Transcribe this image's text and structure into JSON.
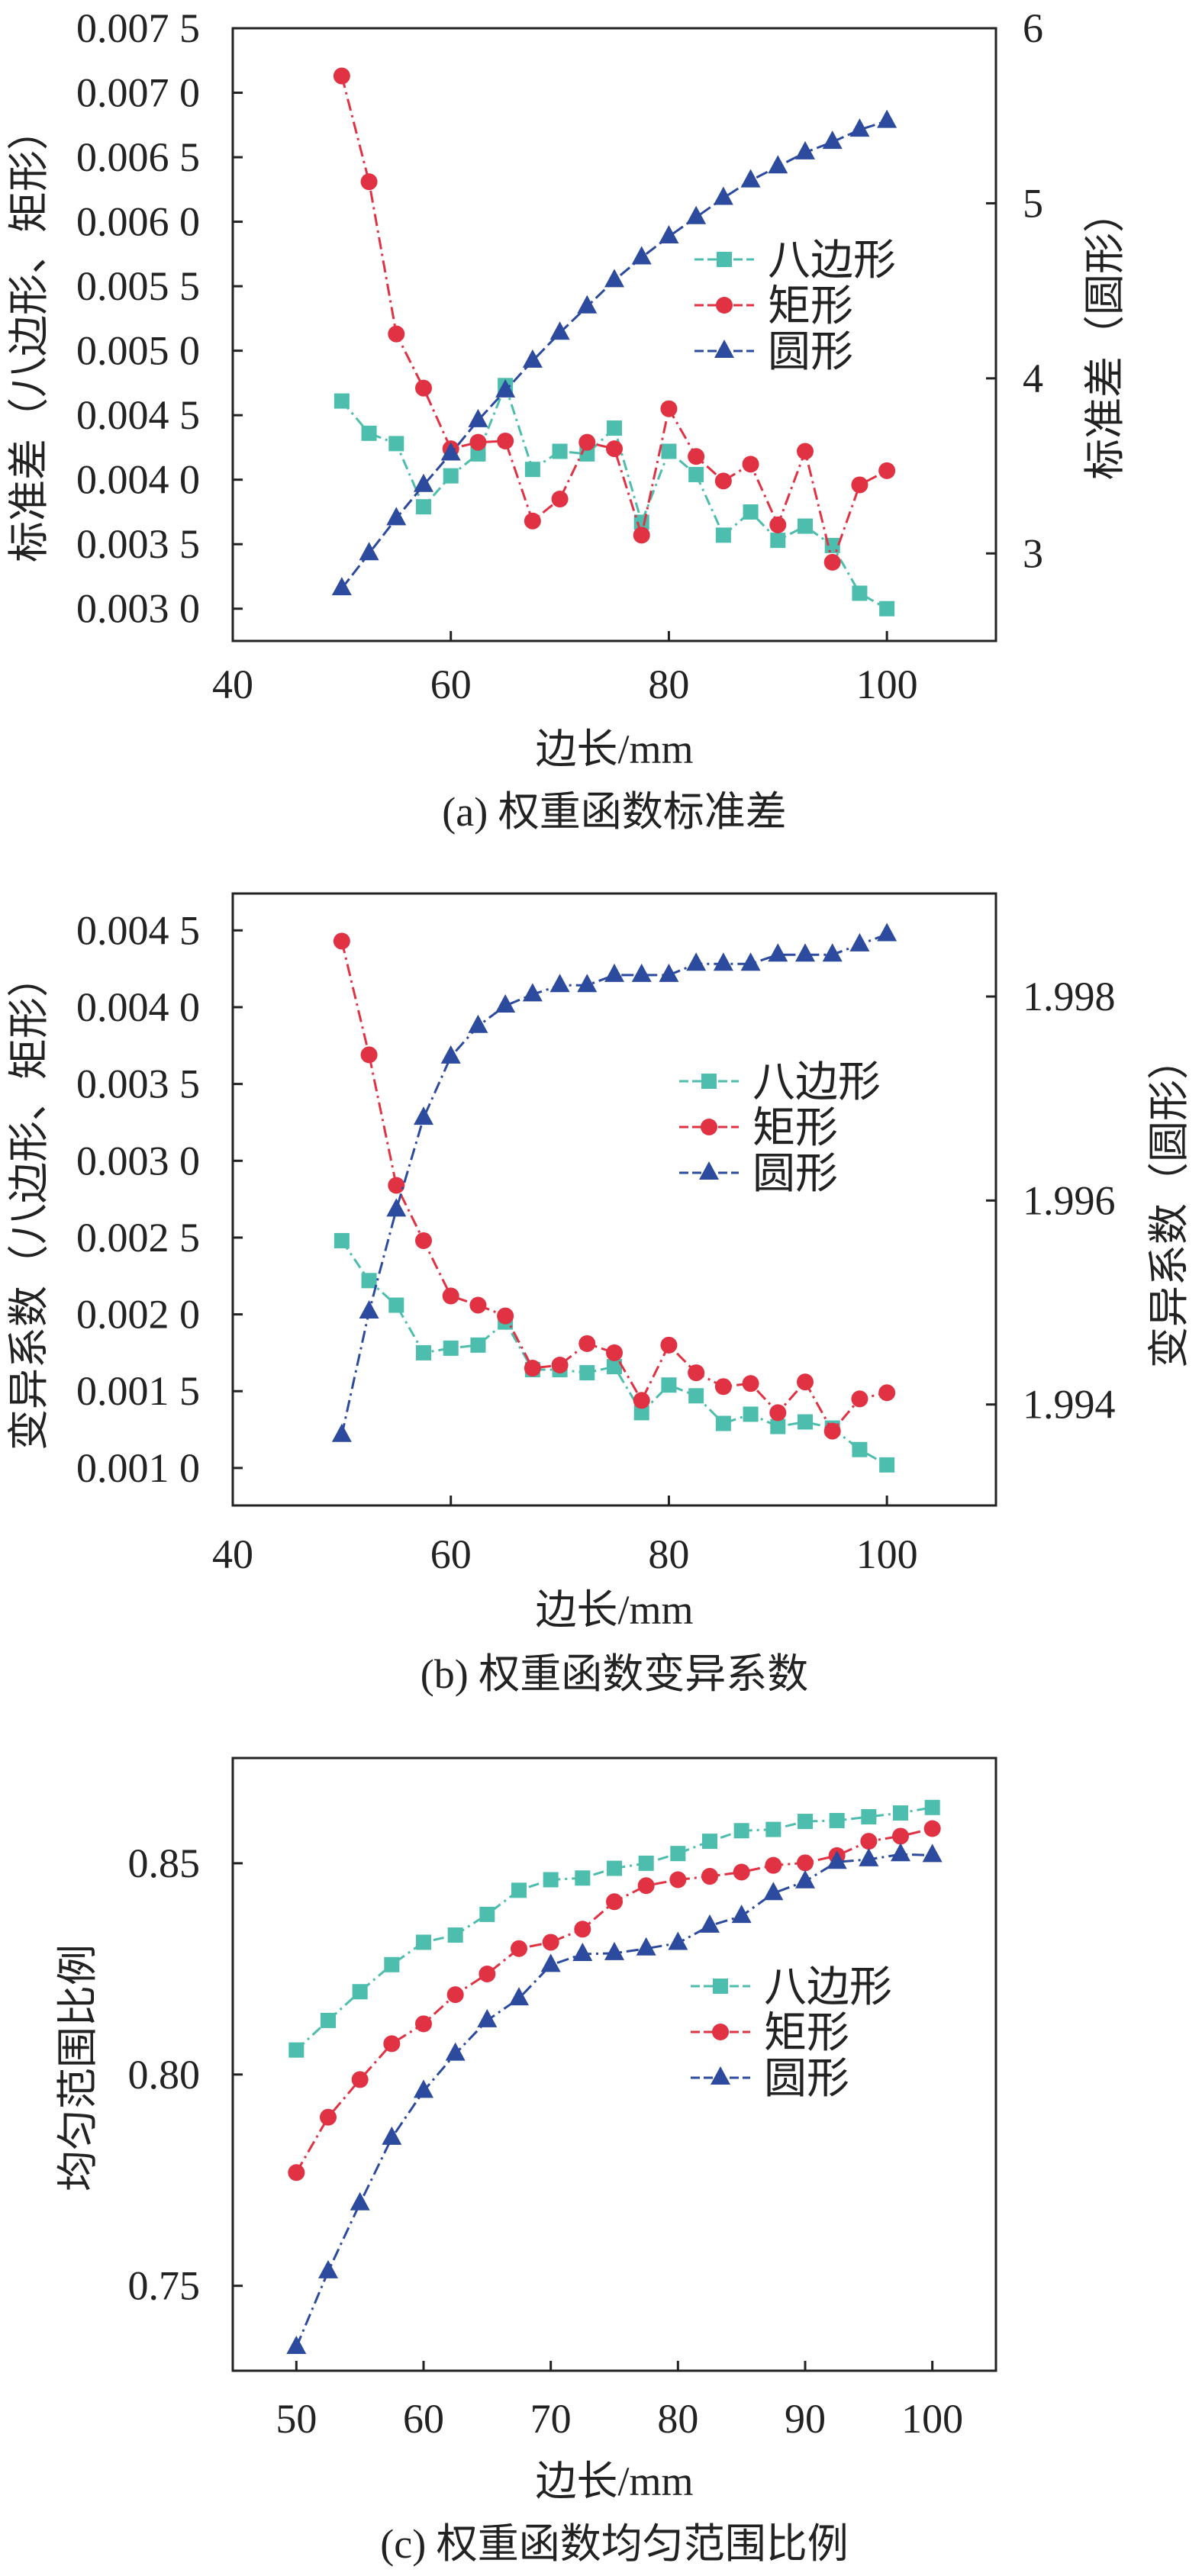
{
  "chart_data": [
    {
      "type": "line",
      "title": "(a) 权重函数标准差",
      "xlabel": "边长/mm",
      "ylabel": "标准差（八边形、矩形）",
      "ylabel_right": "标准差（圆形）",
      "xlim": [
        40,
        110
      ],
      "ylim": [
        0.00275,
        0.0075
      ],
      "ylim_right": [
        2.5,
        6
      ],
      "xticks": [
        {
          "v": 40,
          "label": "40"
        },
        {
          "v": 60,
          "label": "60"
        },
        {
          "v": 80,
          "label": "80"
        },
        {
          "v": 100,
          "label": "100"
        }
      ],
      "yticks": [
        {
          "v": 0.0075,
          "label": "0.007 5"
        },
        {
          "v": 0.007,
          "label": "0.007 0"
        },
        {
          "v": 0.0065,
          "label": "0.006 5"
        },
        {
          "v": 0.006,
          "label": "0.006 0"
        },
        {
          "v": 0.0055,
          "label": "0.005 5"
        },
        {
          "v": 0.005,
          "label": "0.005 0"
        },
        {
          "v": 0.0045,
          "label": "0.004 5"
        },
        {
          "v": 0.004,
          "label": "0.004 0"
        },
        {
          "v": 0.0035,
          "label": "0.003 5"
        },
        {
          "v": 0.003,
          "label": "0.003 0"
        }
      ],
      "yticks_right": [
        {
          "v": 6,
          "label": "6"
        },
        {
          "v": 5,
          "label": "5"
        },
        {
          "v": 4,
          "label": "4"
        },
        {
          "v": 3,
          "label": "3"
        }
      ],
      "legend": "center-right",
      "grid": false,
      "x": [
        50,
        52.5,
        55,
        57.5,
        60,
        62.5,
        65,
        67.5,
        70,
        72.5,
        75,
        77.5,
        80,
        82.5,
        85,
        87.5,
        90,
        92.5,
        95,
        97.5,
        100
      ],
      "series": [
        {
          "name": "八边形",
          "axis": "left",
          "marker": "square",
          "color": "#4dbdad",
          "dash": "14 6 3 6",
          "values": [
            0.00461,
            0.00436,
            0.00428,
            0.00379,
            0.00403,
            0.0042,
            0.00473,
            0.00408,
            0.00422,
            0.0042,
            0.0044,
            0.00367,
            0.00422,
            0.00404,
            0.00357,
            0.00375,
            0.00353,
            0.00364,
            0.00349,
            0.00312,
            0.003
          ]
        },
        {
          "name": "矩形",
          "axis": "left",
          "marker": "circle",
          "color": "#e03243",
          "dash": "16 6 3 6",
          "values": [
            0.00713,
            0.00631,
            0.00513,
            0.00471,
            0.00424,
            0.00429,
            0.0043,
            0.00368,
            0.00385,
            0.00429,
            0.00424,
            0.00357,
            0.00455,
            0.00418,
            0.00399,
            0.00412,
            0.00365,
            0.00422,
            0.00336,
            0.00396,
            0.00407
          ]
        },
        {
          "name": "圆形",
          "axis": "right",
          "marker": "triangle",
          "color": "#2c4a9e",
          "dash": "16 6",
          "values": [
            2.8,
            3.0,
            3.2,
            3.39,
            3.57,
            3.76,
            3.93,
            4.1,
            4.26,
            4.41,
            4.56,
            4.69,
            4.81,
            4.92,
            5.03,
            5.13,
            5.21,
            5.29,
            5.35,
            5.42,
            5.47
          ]
        }
      ]
    },
    {
      "type": "line",
      "title": "(b) 权重函数变异系数",
      "xlabel": "边长/mm",
      "ylabel": "变异系数（八边形、矩形）",
      "ylabel_right": "变异系数（圆形）",
      "xlim": [
        40,
        110
      ],
      "ylim": [
        0.000756,
        0.00474
      ],
      "ylim_right": [
        1.99301,
        1.99901
      ],
      "xticks": [
        {
          "v": 40,
          "label": "40"
        },
        {
          "v": 60,
          "label": "60"
        },
        {
          "v": 80,
          "label": "80"
        },
        {
          "v": 100,
          "label": "100"
        }
      ],
      "yticks": [
        {
          "v": 0.0045,
          "label": "0.004 5"
        },
        {
          "v": 0.004,
          "label": "0.004 0"
        },
        {
          "v": 0.0035,
          "label": "0.003 5"
        },
        {
          "v": 0.003,
          "label": "0.003 0"
        },
        {
          "v": 0.0025,
          "label": "0.002 5"
        },
        {
          "v": 0.002,
          "label": "0.002 0"
        },
        {
          "v": 0.0015,
          "label": "0.001 5"
        },
        {
          "v": 0.001,
          "label": "0.001 0"
        }
      ],
      "yticks_right": [
        {
          "v": 1.998,
          "label": "1.998"
        },
        {
          "v": 1.996,
          "label": "1.996"
        },
        {
          "v": 1.994,
          "label": "1.994"
        }
      ],
      "legend": "center-right",
      "grid": false,
      "x": [
        50,
        52.5,
        55,
        57.5,
        60,
        62.5,
        65,
        67.5,
        70,
        72.5,
        75,
        77.5,
        80,
        82.5,
        85,
        87.5,
        90,
        92.5,
        95,
        97.5,
        100
      ],
      "series": [
        {
          "name": "八边形",
          "axis": "left",
          "marker": "square",
          "color": "#4dbdad",
          "dash": "14 6 3 6",
          "values": [
            0.00248,
            0.00222,
            0.00206,
            0.00175,
            0.00178,
            0.0018,
            0.00195,
            0.00164,
            0.00164,
            0.00162,
            0.00166,
            0.00136,
            0.00154,
            0.00147,
            0.00129,
            0.00135,
            0.00127,
            0.0013,
            0.00126,
            0.00112,
            0.00102
          ]
        },
        {
          "name": "矩形",
          "axis": "left",
          "marker": "circle",
          "color": "#e03243",
          "dash": "16 6 3 6",
          "values": [
            0.00443,
            0.00369,
            0.00284,
            0.00248,
            0.00212,
            0.00206,
            0.00199,
            0.00165,
            0.00167,
            0.00181,
            0.00175,
            0.00144,
            0.0018,
            0.00162,
            0.00153,
            0.00155,
            0.00136,
            0.00156,
            0.00124,
            0.00145,
            0.00149
          ]
        },
        {
          "name": "圆形",
          "axis": "right",
          "marker": "triangle",
          "color": "#2c4a9e",
          "dash": "16 6 3 6",
          "values": [
            1.9937,
            1.99491,
            1.99591,
            1.99681,
            1.99741,
            1.99771,
            1.99791,
            1.99802,
            1.99811,
            1.99811,
            1.99821,
            1.99821,
            1.99821,
            1.99832,
            1.99832,
            1.99832,
            1.99841,
            1.99841,
            1.99841,
            1.99851,
            1.99861
          ]
        }
      ]
    },
    {
      "type": "line",
      "title": "(c) 权重函数均匀范围比例",
      "xlabel": "边长/mm",
      "ylabel": "均匀范围比例",
      "xlim": [
        45,
        105
      ],
      "ylim": [
        0.7299,
        0.8749
      ],
      "xticks": [
        {
          "v": 50,
          "label": "50"
        },
        {
          "v": 60,
          "label": "60"
        },
        {
          "v": 70,
          "label": "70"
        },
        {
          "v": 80,
          "label": "80"
        },
        {
          "v": 90,
          "label": "90"
        },
        {
          "v": 100,
          "label": "100"
        }
      ],
      "yticks": [
        {
          "v": 0.85,
          "label": "0.85"
        },
        {
          "v": 0.8,
          "label": "0.80"
        },
        {
          "v": 0.75,
          "label": "0.75"
        }
      ],
      "legend": "center-right",
      "grid": false,
      "x": [
        50,
        52.5,
        55,
        57.5,
        60,
        62.5,
        65,
        67.5,
        70,
        72.5,
        75,
        77.5,
        80,
        82.5,
        85,
        87.5,
        90,
        92.5,
        95,
        97.5,
        100
      ],
      "series": [
        {
          "name": "八边形",
          "axis": "left",
          "marker": "square",
          "color": "#4dbdad",
          "dash": "14 6 3 6",
          "values": [
            0.8058,
            0.8128,
            0.8196,
            0.826,
            0.8313,
            0.833,
            0.8379,
            0.8436,
            0.8461,
            0.8465,
            0.8488,
            0.85,
            0.8523,
            0.8552,
            0.8577,
            0.858,
            0.8599,
            0.8601,
            0.861,
            0.8619,
            0.8632
          ]
        },
        {
          "name": "矩形",
          "axis": "left",
          "marker": "circle",
          "color": "#e03243",
          "dash": "16 6 3 6",
          "values": [
            0.7768,
            0.7899,
            0.7988,
            0.8073,
            0.812,
            0.8189,
            0.8238,
            0.8298,
            0.8313,
            0.8344,
            0.8409,
            0.8447,
            0.8461,
            0.8469,
            0.8479,
            0.8495,
            0.8501,
            0.8518,
            0.8552,
            0.8564,
            0.8582
          ]
        },
        {
          "name": "圆形",
          "axis": "left",
          "marker": "triangle",
          "color": "#2c4a9e",
          "dash": "16 6 3 6",
          "values": [
            0.7355,
            0.7534,
            0.7695,
            0.785,
            0.7961,
            0.8049,
            0.8128,
            0.818,
            0.8259,
            0.8285,
            0.8287,
            0.8298,
            0.8311,
            0.8352,
            0.8375,
            0.8429,
            0.8457,
            0.8503,
            0.8509,
            0.8521,
            0.8519
          ]
        }
      ]
    }
  ]
}
